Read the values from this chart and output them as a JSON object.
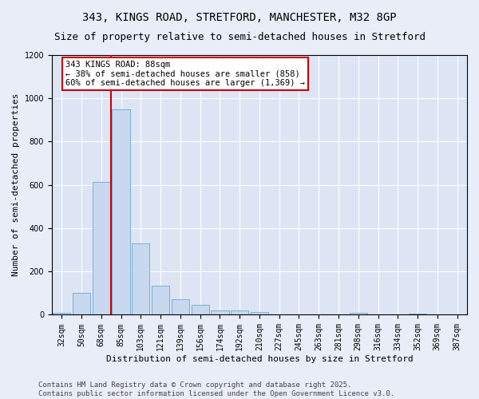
{
  "title_line1": "343, KINGS ROAD, STRETFORD, MANCHESTER, M32 8GP",
  "title_line2": "Size of property relative to semi-detached houses in Stretford",
  "xlabel": "Distribution of semi-detached houses by size in Stretford",
  "ylabel": "Number of semi-detached properties",
  "bar_color": "#c8d8ee",
  "bar_edge_color": "#7bafd4",
  "fig_background_color": "#e8edf8",
  "axes_background_color": "#dde5f5",
  "grid_color": "#ffffff",
  "categories": [
    "32sqm",
    "50sqm",
    "68sqm",
    "85sqm",
    "103sqm",
    "121sqm",
    "139sqm",
    "156sqm",
    "174sqm",
    "192sqm",
    "210sqm",
    "227sqm",
    "245sqm",
    "263sqm",
    "281sqm",
    "298sqm",
    "316sqm",
    "334sqm",
    "352sqm",
    "369sqm",
    "387sqm"
  ],
  "values": [
    8,
    100,
    615,
    950,
    330,
    135,
    70,
    45,
    22,
    22,
    14,
    0,
    0,
    0,
    0,
    10,
    0,
    0,
    5,
    0,
    0
  ],
  "ylim": [
    0,
    1200
  ],
  "yticks": [
    0,
    200,
    400,
    600,
    800,
    1000,
    1200
  ],
  "property_label": "343 KINGS ROAD: 88sqm",
  "pct_smaller": 38,
  "pct_larger": 60,
  "n_smaller": 858,
  "n_larger": 1369,
  "annotation_box_color": "#ffffff",
  "annotation_border_color": "#cc0000",
  "vline_color": "#cc0000",
  "title_fontsize": 10,
  "subtitle_fontsize": 9,
  "axis_label_fontsize": 8,
  "tick_fontsize": 7,
  "annotation_fontsize": 7.5,
  "footer_text": "Contains HM Land Registry data © Crown copyright and database right 2025.\nContains public sector information licensed under the Open Government Licence v3.0.",
  "footer_fontsize": 6.5
}
